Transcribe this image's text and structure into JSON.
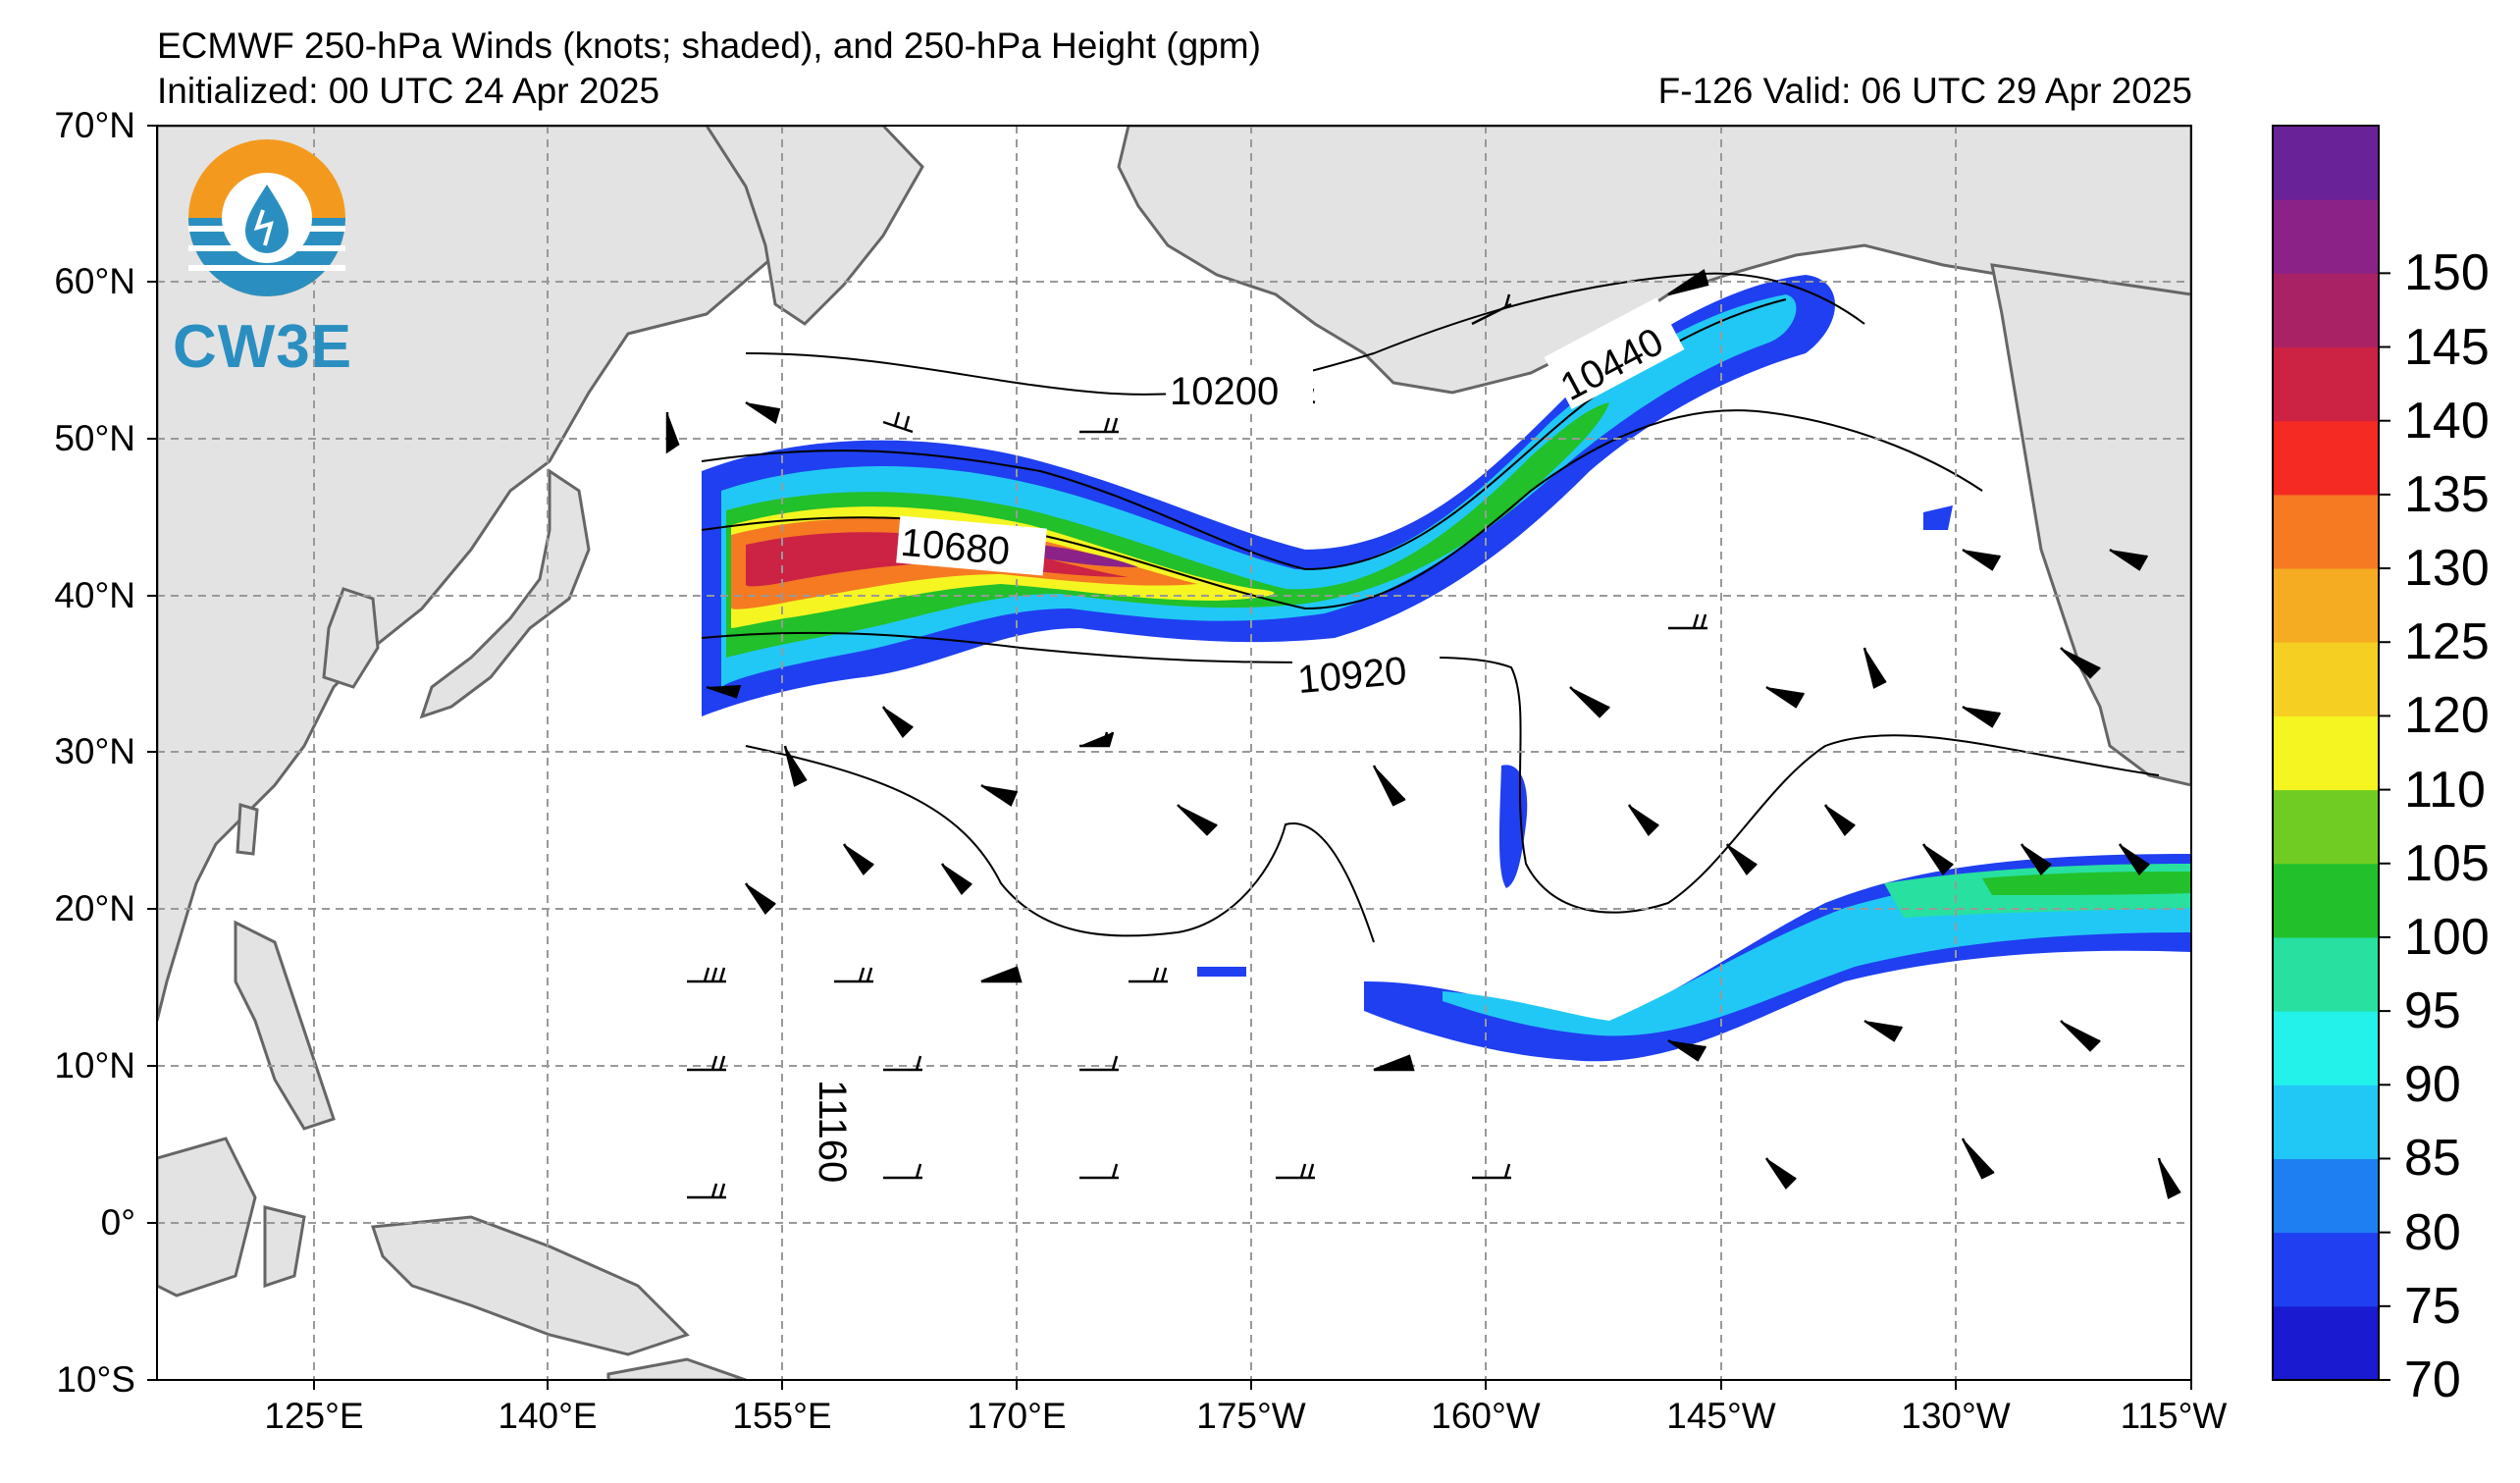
{
  "header": {
    "title": "ECMWF 250-hPa Winds (knots; shaded), and 250-hPa Height (gpm)",
    "initialized": "Initialized: 00 UTC 24 Apr 2025",
    "valid": "F-126  Valid: 06 UTC 29 Apr 2025"
  },
  "logo": {
    "text": "CW3E",
    "icon": "water-drop-logo-icon"
  },
  "axes": {
    "lat_ticks": [
      "70°N",
      "60°N",
      "50°N",
      "40°N",
      "30°N",
      "20°N",
      "10°N",
      "0°",
      "10°S"
    ],
    "lon_ticks": [
      "125°E",
      "140°E",
      "155°E",
      "170°E",
      "175°W",
      "160°W",
      "145°W",
      "130°W",
      "115°W"
    ]
  },
  "contour_labels": [
    "10200",
    "10440",
    "10680",
    "10920",
    "11160"
  ],
  "colorbar": {
    "levels": [
      "70",
      "75",
      "80",
      "85",
      "90",
      "95",
      "100",
      "105",
      "110",
      "120",
      "125",
      "130",
      "135",
      "140",
      "145",
      "150"
    ],
    "colors": [
      "#1a1ad0",
      "#1f3ff0",
      "#1e7ff2",
      "#22c8f5",
      "#22f2ea",
      "#28e0a0",
      "#22c02a",
      "#70cc22",
      "#f5f522",
      "#f5d022",
      "#f5ac22",
      "#f57a22",
      "#f52a22",
      "#cc2244",
      "#aa2266",
      "#8a2288",
      "#6a2298"
    ]
  },
  "colors": {
    "land": "#e3e3e3",
    "ocean": "#ffffff",
    "coast": "#666666",
    "grid": "#999999"
  }
}
